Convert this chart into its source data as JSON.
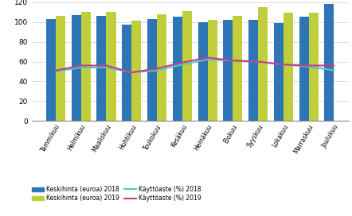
{
  "months": [
    "Tammikuu",
    "Helmikuu",
    "Maaliskuu",
    "Huhtikuu",
    "Toukokuu",
    "Kesäkuu",
    "Heinäkuu",
    "Elokuu",
    "Syyskuu",
    "Lokakuu",
    "Marraskuu",
    "Joulukuu"
  ],
  "keskihinta_2018": [
    103,
    107,
    106,
    97,
    103,
    105,
    100,
    102,
    102,
    99,
    105,
    118
  ],
  "keskihinta_2019": [
    106,
    110,
    110,
    101,
    108,
    111,
    102,
    106,
    115,
    109,
    109,
    0
  ],
  "kayttoaste_2018": [
    50,
    54,
    54,
    49,
    51,
    57,
    62,
    61,
    60,
    57,
    55,
    51
  ],
  "kayttoaste_2019": [
    51,
    56,
    56,
    49,
    53,
    59,
    64,
    61,
    60,
    57,
    56,
    56
  ],
  "color_2018": "#2E75B6",
  "color_2019": "#BFCE3A",
  "color_line_2018": "#4EC9C0",
  "color_line_2019": "#C43E8E",
  "ylim": [
    0,
    120
  ],
  "yticks": [
    0,
    20,
    40,
    60,
    80,
    100,
    120
  ],
  "legend": [
    "Keskihinta (euroa) 2018",
    "Keskihinta (euroa) 2019",
    "Käyttöaste (%) 2018",
    "Käyttöaste (%) 2019"
  ]
}
